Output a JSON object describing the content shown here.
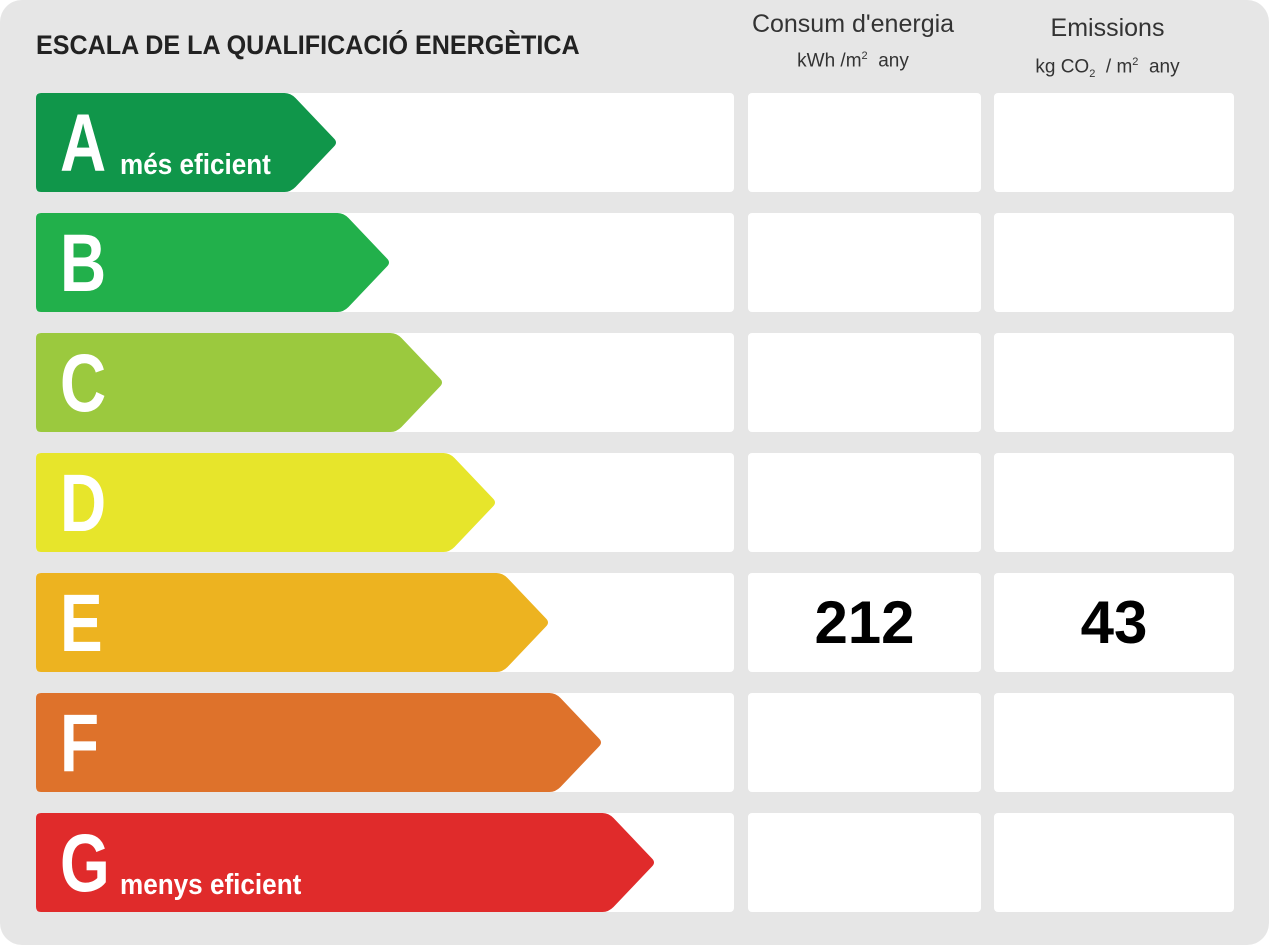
{
  "title": "ESCALA DE LA QUALIFICACIÓ ENERGÈTICA",
  "columns": {
    "consum": {
      "label": "Consum d'energia",
      "unit_prefix": "kWh /m",
      "unit_sup": "2",
      "unit_suffix": "any"
    },
    "emissions": {
      "label": "Emissions",
      "unit_prefix": "kg CO",
      "unit_sub": "2",
      "unit_mid": "/ m",
      "unit_sup": "2",
      "unit_suffix": "any"
    }
  },
  "ratings": [
    {
      "letter": "A",
      "sublabel": "més eficient",
      "color": "#10964a",
      "consum": "",
      "emissions": ""
    },
    {
      "letter": "B",
      "sublabel": "",
      "color": "#22b04b",
      "consum": "",
      "emissions": ""
    },
    {
      "letter": "C",
      "sublabel": "",
      "color": "#9bc93e",
      "consum": "",
      "emissions": ""
    },
    {
      "letter": "D",
      "sublabel": "",
      "color": "#e7e52b",
      "consum": "",
      "emissions": ""
    },
    {
      "letter": "E",
      "sublabel": "",
      "color": "#edb320",
      "consum": "212",
      "emissions": "43"
    },
    {
      "letter": "F",
      "sublabel": "",
      "color": "#de722b",
      "consum": "",
      "emissions": ""
    },
    {
      "letter": "G",
      "sublabel": "menys eficient",
      "color": "#e02b2b",
      "consum": "",
      "emissions": ""
    }
  ],
  "current_rating": "E"
}
